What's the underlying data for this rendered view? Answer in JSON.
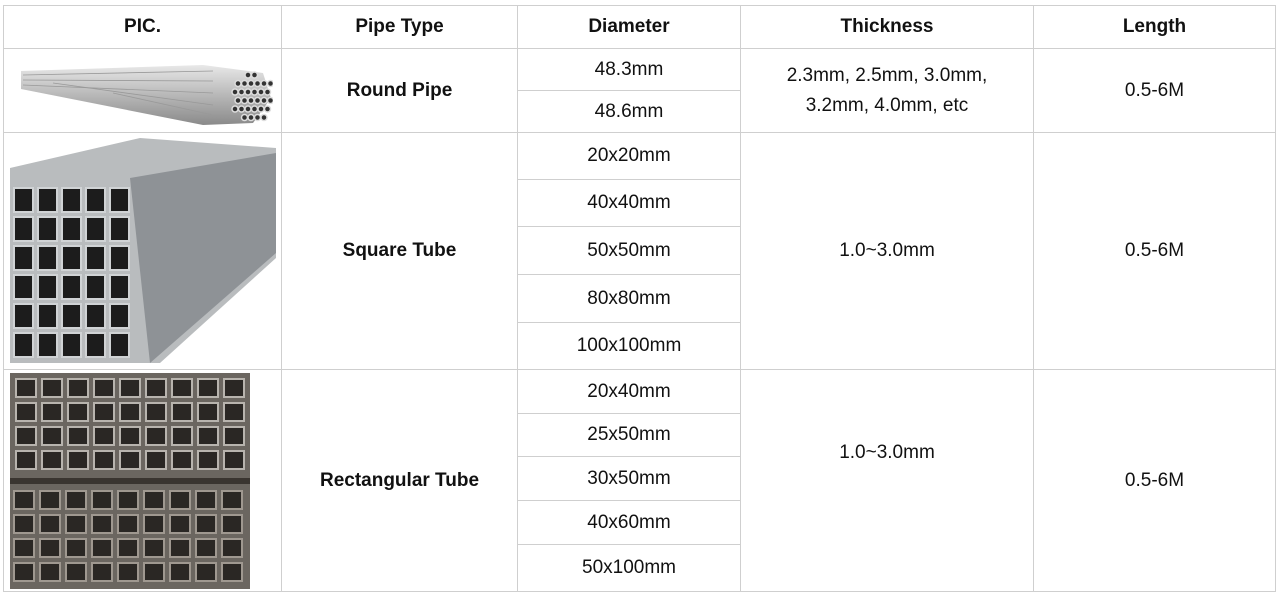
{
  "headers": [
    "PIC.",
    "Pipe Type",
    "Diameter",
    "Thickness",
    "Length"
  ],
  "rows": [
    {
      "image": "round-pipe-bundle-photo",
      "type": "Round Pipe",
      "diameters": [
        "48.3mm",
        "48.6mm"
      ],
      "thickness_lines": [
        "2.3mm, 2.5mm, 3.0mm,",
        "3.2mm, 4.0mm, etc"
      ],
      "length": "0.5-6M"
    },
    {
      "image": "square-tube-bundle-photo",
      "type": "Square Tube",
      "diameters": [
        "20x20mm",
        "40x40mm",
        "50x50mm",
        "80x80mm",
        "100x100mm"
      ],
      "thickness": "1.0~3.0mm",
      "length": "0.5-6M"
    },
    {
      "image": "rectangular-tube-stack-photo",
      "type": "Rectangular Tube",
      "diameters": [
        "20x40mm",
        "25x50mm",
        "30x50mm",
        "40x60mm",
        "50x100mm"
      ],
      "thickness": "1.0~3.0mm",
      "length": "0.5-6M"
    }
  ],
  "colors": {
    "border": "#cfcfcf",
    "text": "#111111"
  }
}
